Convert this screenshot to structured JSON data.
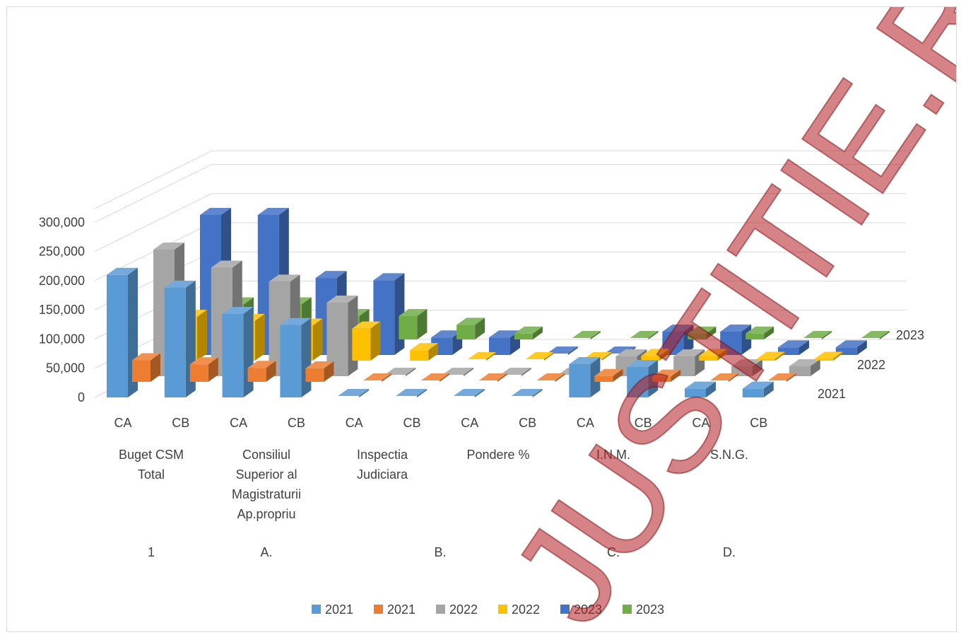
{
  "chart_data": {
    "type": "bar",
    "subtype": "3d-column",
    "y_ticks": [
      "0",
      "50,000",
      "100,000",
      "150,000",
      "200,000",
      "250,000",
      "300,000"
    ],
    "ylim": [
      0,
      300000
    ],
    "grid": true,
    "legend_position": "bottom",
    "depth_labels": [
      "2021",
      "2022",
      "2023"
    ],
    "groups": [
      {
        "code": "1",
        "name_lines": [
          "Buget CSM",
          "Total"
        ]
      },
      {
        "code": "A.",
        "name_lines": [
          "Consiliul",
          "Superior al",
          "Magistraturii",
          "Ap.propriu"
        ]
      },
      {
        "code": "B.",
        "name_lines": [
          "Inspectia",
          "Judiciara"
        ]
      },
      {
        "code": "",
        "name_lines": [
          "Pondere %"
        ]
      },
      {
        "code": "C.",
        "name_lines": [
          "I.N.M."
        ]
      },
      {
        "code": "D.",
        "name_lines": [
          "S.N.G."
        ]
      }
    ],
    "categories": [
      "CA",
      "CB",
      "CA",
      "CB",
      "CA",
      "CB",
      "CA",
      "CB",
      "CA",
      "CB",
      "CA",
      "CB"
    ],
    "series": [
      {
        "name": "2021",
        "color": "#5b9bd5",
        "row": 0,
        "values": [
          210000,
          188000,
          143000,
          124000,
          0,
          0,
          0,
          0,
          57000,
          52000,
          15000,
          15000
        ]
      },
      {
        "name": "2021",
        "color": "#ed7d31",
        "row": 0,
        "values": [
          37000,
          30000,
          24000,
          23000,
          0,
          0,
          0,
          0,
          10000,
          9000,
          2000,
          2000
        ]
      },
      {
        "name": "2022",
        "color": "#a5a5a5",
        "row": 1,
        "values": [
          217000,
          186000,
          162000,
          126000,
          0,
          0,
          0,
          0,
          34000,
          34000,
          17000,
          17000
        ]
      },
      {
        "name": "2022",
        "color": "#ffc000",
        "row": 1,
        "values": [
          75000,
          68000,
          60000,
          55000,
          18000,
          0,
          0,
          0,
          8000,
          8000,
          3000,
          3000
        ]
      },
      {
        "name": "2023",
        "color": "#4472c4",
        "row": 2,
        "values": [
          240000,
          240000,
          132000,
          128000,
          30000,
          30000,
          0,
          0,
          40000,
          40000,
          13000,
          13000
        ]
      },
      {
        "name": "2023",
        "color": "#70ad47",
        "row": 2,
        "values": [
          60000,
          60000,
          40000,
          40000,
          25000,
          10000,
          0,
          0,
          10000,
          10000,
          2000,
          2000
        ]
      }
    ]
  },
  "watermark": "JUSTITIE.RO"
}
